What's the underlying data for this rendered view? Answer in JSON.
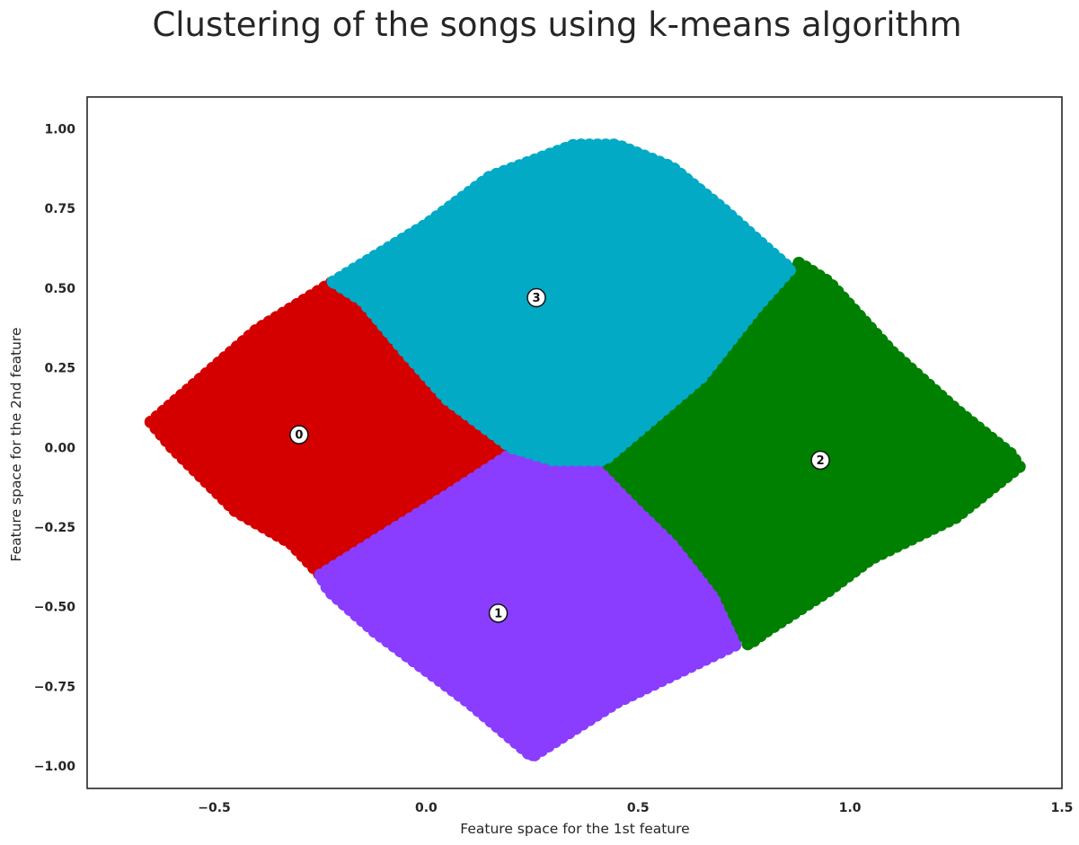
{
  "chart_data": {
    "type": "scatter",
    "title": "Clustering of the songs using k-means algorithm",
    "xlabel": "Feature space for the 1st feature",
    "ylabel": "Feature space for the 2nd feature",
    "xlim": [
      -0.8,
      1.5
    ],
    "ylim": [
      -1.07,
      1.1
    ],
    "xticks": [
      -0.5,
      0.0,
      0.5,
      1.0,
      1.5
    ],
    "xtick_labels": [
      "−0.5",
      "0.0",
      "0.5",
      "1.0",
      "1.5"
    ],
    "yticks": [
      1.0,
      0.75,
      0.5,
      0.25,
      0.0,
      -0.25,
      -0.5,
      -0.75,
      -1.0
    ],
    "ytick_labels": [
      "1.00",
      "0.75",
      "0.50",
      "0.25",
      "0.00",
      "−0.25",
      "−0.50",
      "−0.75",
      "−1.00"
    ],
    "grid": false,
    "clusters": [
      {
        "label": "0",
        "color": "#d40000",
        "centroid": [
          -0.3,
          0.04
        ],
        "outline": [
          [
            -0.65,
            0.08
          ],
          [
            -0.4,
            0.37
          ],
          [
            -0.22,
            0.52
          ],
          [
            -0.15,
            0.46
          ],
          [
            -0.05,
            0.3
          ],
          [
            0.05,
            0.15
          ],
          [
            0.2,
            0.0
          ],
          [
            0.1,
            -0.15
          ],
          [
            -0.05,
            -0.3
          ],
          [
            -0.25,
            -0.4
          ],
          [
            -0.32,
            -0.3
          ],
          [
            -0.45,
            -0.2
          ],
          [
            -0.6,
            0.0
          ]
        ]
      },
      {
        "label": "1",
        "color": "#8a3dff",
        "centroid": [
          0.17,
          -0.52
        ],
        "outline": [
          [
            -0.25,
            -0.4
          ],
          [
            0.05,
            -0.15
          ],
          [
            0.2,
            -0.02
          ],
          [
            0.3,
            -0.04
          ],
          [
            0.42,
            -0.04
          ],
          [
            0.5,
            -0.12
          ],
          [
            0.6,
            -0.25
          ],
          [
            0.7,
            -0.38
          ],
          [
            0.75,
            -0.5
          ],
          [
            0.73,
            -0.62
          ],
          [
            0.45,
            -0.8
          ],
          [
            0.25,
            -0.97
          ],
          [
            0.1,
            -0.8
          ],
          [
            -0.02,
            -0.68
          ],
          [
            -0.12,
            -0.58
          ],
          [
            -0.23,
            -0.45
          ]
        ]
      },
      {
        "label": "2",
        "color": "#008000",
        "centroid": [
          0.93,
          -0.04
        ],
        "outline": [
          [
            0.42,
            -0.04
          ],
          [
            0.5,
            0.05
          ],
          [
            0.65,
            0.22
          ],
          [
            0.8,
            0.45
          ],
          [
            0.88,
            0.58
          ],
          [
            0.95,
            0.52
          ],
          [
            1.1,
            0.3
          ],
          [
            1.25,
            0.12
          ],
          [
            1.38,
            -0.02
          ],
          [
            1.4,
            -0.06
          ],
          [
            1.25,
            -0.22
          ],
          [
            1.05,
            -0.35
          ],
          [
            0.95,
            -0.45
          ],
          [
            0.8,
            -0.58
          ],
          [
            0.76,
            -0.62
          ],
          [
            0.7,
            -0.45
          ],
          [
            0.6,
            -0.28
          ],
          [
            0.5,
            -0.15
          ]
        ]
      },
      {
        "label": "3",
        "color": "#02aac6",
        "centroid": [
          0.26,
          0.47
        ],
        "outline": [
          [
            -0.22,
            0.52
          ],
          [
            0.0,
            0.7
          ],
          [
            0.15,
            0.85
          ],
          [
            0.35,
            0.95
          ],
          [
            0.45,
            0.95
          ],
          [
            0.58,
            0.88
          ],
          [
            0.7,
            0.75
          ],
          [
            0.8,
            0.63
          ],
          [
            0.86,
            0.56
          ],
          [
            0.78,
            0.44
          ],
          [
            0.65,
            0.22
          ],
          [
            0.5,
            0.05
          ],
          [
            0.42,
            -0.04
          ],
          [
            0.3,
            -0.04
          ],
          [
            0.2,
            0.0
          ],
          [
            0.05,
            0.15
          ],
          [
            -0.05,
            0.3
          ],
          [
            -0.15,
            0.46
          ]
        ]
      }
    ]
  }
}
